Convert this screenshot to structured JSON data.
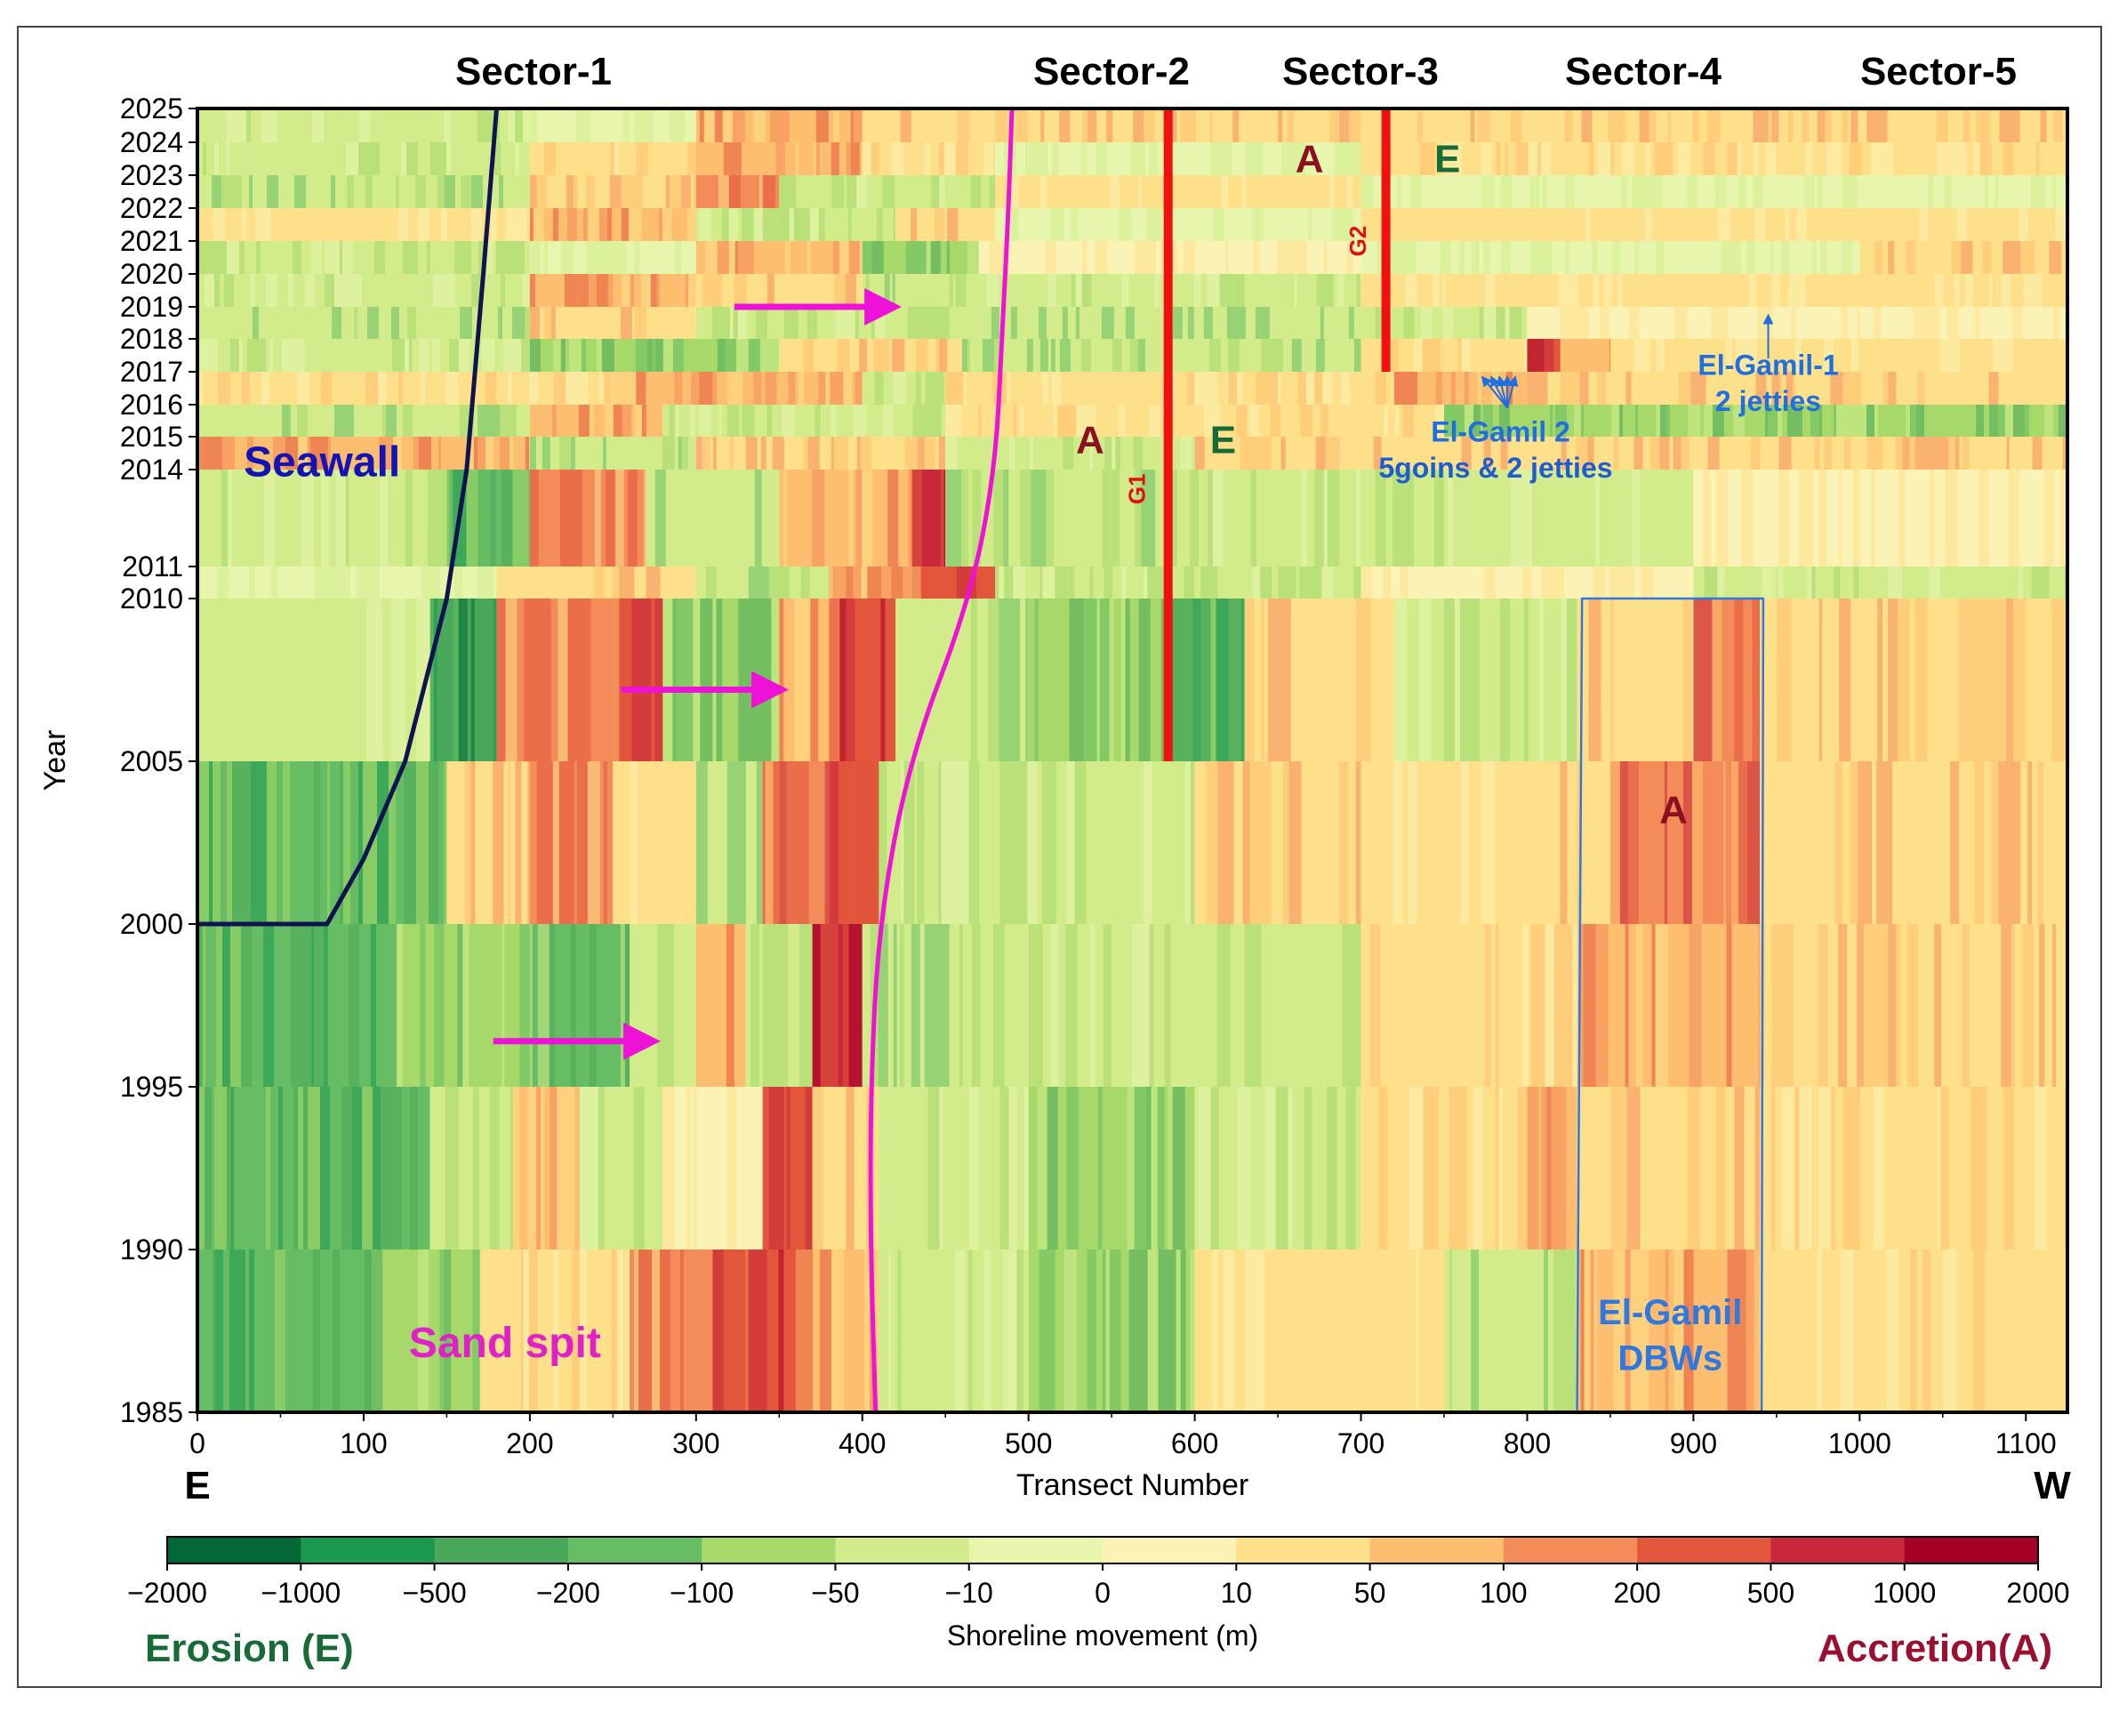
{
  "chart_data": {
    "type": "heatmap",
    "title": "",
    "xlabel": "Transect Number",
    "ylabel": "Year",
    "xlim": [
      0,
      1125
    ],
    "x_ticks": [
      0,
      100,
      200,
      300,
      400,
      500,
      600,
      700,
      800,
      900,
      1000,
      1100
    ],
    "y_ticks": [
      "1985",
      "1990",
      "1995",
      "2000",
      "2005",
      "2010",
      "2011",
      "2014",
      "2015",
      "2016",
      "2017",
      "2018",
      "2019",
      "2020",
      "2021",
      "2022",
      "2023",
      "2024",
      "2025"
    ],
    "direction_labels": {
      "left": "E",
      "right": "W"
    },
    "sectors": [
      {
        "label": "Sector-1",
        "center": 200
      },
      {
        "label": "Sector-2",
        "center": 550
      },
      {
        "label": "Sector-3",
        "center": 700
      },
      {
        "label": "Sector-4",
        "center": 870
      },
      {
        "label": "Sector-5",
        "center": 1050
      }
    ],
    "colorbar": {
      "label": "Shoreline movement (m)",
      "ticks": [
        "−2000",
        "−1000",
        "−500",
        "−200",
        "−100",
        "−50",
        "−10",
        "0",
        "10",
        "50",
        "100",
        "200",
        "500",
        "1000",
        "2000"
      ],
      "colors": [
        "#006837",
        "#1a9850",
        "#4aa85a",
        "#66bd63",
        "#a6d96a",
        "#d2ec8c",
        "#e8f5ad",
        "#fbf3b5",
        "#fee08b",
        "#fdbf6f",
        "#f48c5a",
        "#e2563c",
        "#c8283a",
        "#a50026"
      ],
      "left_label": "Erosion (E)",
      "right_label": "Accretion(A)"
    },
    "rows": [
      {
        "from": 1985,
        "to": 1990,
        "segments": [
          [
            0,
            105,
            -150
          ],
          [
            105,
            170,
            -60
          ],
          [
            170,
            260,
            15
          ],
          [
            260,
            310,
            120
          ],
          [
            310,
            360,
            320
          ],
          [
            360,
            410,
            60
          ],
          [
            410,
            500,
            -15
          ],
          [
            500,
            600,
            -60
          ],
          [
            600,
            750,
            12
          ],
          [
            750,
            830,
            -30
          ],
          [
            830,
            940,
            70
          ],
          [
            940,
            1125,
            20
          ]
        ]
      },
      {
        "from": 1990,
        "to": 1995,
        "segments": [
          [
            0,
            140,
            -160
          ],
          [
            140,
            190,
            -40
          ],
          [
            190,
            230,
            90
          ],
          [
            230,
            280,
            -25
          ],
          [
            280,
            340,
            8
          ],
          [
            340,
            370,
            350
          ],
          [
            370,
            410,
            30
          ],
          [
            410,
            500,
            -20
          ],
          [
            500,
            600,
            -80
          ],
          [
            600,
            700,
            -25
          ],
          [
            700,
            800,
            15
          ],
          [
            800,
            830,
            60
          ],
          [
            830,
            940,
            30
          ],
          [
            940,
            1125,
            20
          ]
        ]
      },
      {
        "from": 1995,
        "to": 2000,
        "segments": [
          [
            0,
            120,
            -160
          ],
          [
            120,
            200,
            -70
          ],
          [
            200,
            260,
            -120
          ],
          [
            260,
            300,
            -40
          ],
          [
            300,
            330,
            90
          ],
          [
            330,
            370,
            -25
          ],
          [
            370,
            400,
            600
          ],
          [
            400,
            500,
            -30
          ],
          [
            500,
            600,
            -20
          ],
          [
            600,
            700,
            -45
          ],
          [
            700,
            830,
            20
          ],
          [
            830,
            940,
            75
          ],
          [
            940,
            1125,
            25
          ]
        ]
      },
      {
        "from": 2000,
        "to": 2005,
        "segments": [
          [
            0,
            150,
            -170
          ],
          [
            150,
            200,
            30
          ],
          [
            200,
            250,
            100
          ],
          [
            250,
            300,
            20
          ],
          [
            300,
            340,
            -50
          ],
          [
            340,
            380,
            160
          ],
          [
            380,
            410,
            220
          ],
          [
            410,
            500,
            -25
          ],
          [
            500,
            600,
            -15
          ],
          [
            600,
            700,
            30
          ],
          [
            700,
            800,
            12
          ],
          [
            800,
            850,
            35
          ],
          [
            850,
            940,
            140
          ],
          [
            940,
            1125,
            35
          ]
        ]
      },
      {
        "from": 2005,
        "to": 2010,
        "segments": [
          [
            0,
            140,
            -12
          ],
          [
            140,
            180,
            -300
          ],
          [
            180,
            250,
            110
          ],
          [
            250,
            280,
            240
          ],
          [
            280,
            350,
            -90
          ],
          [
            350,
            380,
            80
          ],
          [
            380,
            420,
            450
          ],
          [
            420,
            500,
            -35
          ],
          [
            500,
            585,
            -60
          ],
          [
            585,
            630,
            -180
          ],
          [
            630,
            720,
            25
          ],
          [
            720,
            830,
            -15
          ],
          [
            830,
            900,
            40
          ],
          [
            900,
            940,
            150
          ],
          [
            940,
            1125,
            30
          ]
        ]
      },
      {
        "from": 2010,
        "to": 2011,
        "segments": [
          [
            0,
            180,
            -10
          ],
          [
            180,
            300,
            35
          ],
          [
            300,
            380,
            -40
          ],
          [
            380,
            430,
            70
          ],
          [
            430,
            480,
            220
          ],
          [
            480,
            700,
            -25
          ],
          [
            700,
            900,
            8
          ],
          [
            900,
            1125,
            -15
          ]
        ]
      },
      {
        "from": 2011,
        "to": 2014,
        "segments": [
          [
            0,
            150,
            -20
          ],
          [
            150,
            200,
            -180
          ],
          [
            200,
            270,
            100
          ],
          [
            270,
            350,
            -45
          ],
          [
            350,
            430,
            60
          ],
          [
            430,
            450,
            600
          ],
          [
            450,
            590,
            -40
          ],
          [
            590,
            750,
            -25
          ],
          [
            750,
            900,
            -12
          ],
          [
            900,
            1125,
            6
          ]
        ]
      },
      {
        "from": 2014,
        "to": 2015,
        "segments": [
          [
            0,
            200,
            60
          ],
          [
            200,
            300,
            -30
          ],
          [
            300,
            450,
            35
          ],
          [
            450,
            600,
            -15
          ],
          [
            600,
            1125,
            30
          ]
        ]
      },
      {
        "from": 2015,
        "to": 2016,
        "segments": [
          [
            0,
            200,
            -30
          ],
          [
            200,
            280,
            60
          ],
          [
            280,
            450,
            -20
          ],
          [
            450,
            750,
            20
          ],
          [
            750,
            1125,
            -60
          ]
        ]
      },
      {
        "from": 2016,
        "to": 2017,
        "segments": [
          [
            0,
            250,
            15
          ],
          [
            250,
            400,
            90
          ],
          [
            400,
            450,
            -25
          ],
          [
            450,
            720,
            20
          ],
          [
            720,
            800,
            60
          ],
          [
            800,
            1125,
            25
          ]
        ]
      },
      {
        "from": 2017,
        "to": 2018,
        "segments": [
          [
            0,
            200,
            -15
          ],
          [
            200,
            350,
            -60
          ],
          [
            350,
            460,
            35
          ],
          [
            460,
            700,
            -35
          ],
          [
            700,
            800,
            20
          ],
          [
            800,
            820,
            300
          ],
          [
            820,
            850,
            80
          ],
          [
            850,
            1125,
            12
          ]
        ]
      },
      {
        "from": 2018,
        "to": 2019,
        "segments": [
          [
            0,
            200,
            -40
          ],
          [
            200,
            300,
            25
          ],
          [
            300,
            460,
            -25
          ],
          [
            460,
            700,
            -50
          ],
          [
            700,
            800,
            -20
          ],
          [
            800,
            1125,
            8
          ]
        ]
      },
      {
        "from": 2019,
        "to": 2020,
        "segments": [
          [
            0,
            200,
            -20
          ],
          [
            200,
            300,
            80
          ],
          [
            300,
            400,
            30
          ],
          [
            400,
            470,
            -40
          ],
          [
            470,
            700,
            -15
          ],
          [
            700,
            1125,
            10
          ]
        ]
      },
      {
        "from": 2020,
        "to": 2021,
        "segments": [
          [
            0,
            200,
            -25
          ],
          [
            200,
            300,
            -10
          ],
          [
            300,
            400,
            70
          ],
          [
            400,
            470,
            -60
          ],
          [
            470,
            700,
            8
          ],
          [
            700,
            1000,
            -10
          ],
          [
            1000,
            1125,
            40
          ]
        ]
      },
      {
        "from": 2021,
        "to": 2022,
        "segments": [
          [
            0,
            200,
            10
          ],
          [
            200,
            300,
            50
          ],
          [
            300,
            420,
            -25
          ],
          [
            420,
            480,
            40
          ],
          [
            480,
            700,
            -10
          ],
          [
            700,
            1125,
            12
          ]
        ]
      },
      {
        "from": 2022,
        "to": 2023,
        "segments": [
          [
            0,
            200,
            -35
          ],
          [
            200,
            300,
            35
          ],
          [
            300,
            350,
            120
          ],
          [
            350,
            480,
            -20
          ],
          [
            480,
            700,
            10
          ],
          [
            700,
            1125,
            -8
          ]
        ]
      },
      {
        "from": 2023,
        "to": 2024,
        "segments": [
          [
            0,
            200,
            -15
          ],
          [
            200,
            300,
            15
          ],
          [
            300,
            400,
            70
          ],
          [
            400,
            480,
            20
          ],
          [
            480,
            700,
            -10
          ],
          [
            700,
            1125,
            20
          ]
        ]
      },
      {
        "from": 2024,
        "to": 2025,
        "segments": [
          [
            0,
            200,
            -20
          ],
          [
            200,
            300,
            -10
          ],
          [
            300,
            400,
            50
          ],
          [
            400,
            480,
            30
          ],
          [
            480,
            700,
            25
          ],
          [
            700,
            1125,
            35
          ]
        ]
      }
    ],
    "annotations": [
      {
        "text": "Seawall",
        "x": 75,
        "y": 2013.8,
        "color": "#1414b4"
      },
      {
        "text": "Sand spit",
        "x": 185,
        "y": 1986.7,
        "color": "#e020c8"
      },
      {
        "text": "A",
        "x": 537,
        "y": 2014.5,
        "color": "#8b1022"
      },
      {
        "text": "E",
        "x": 617,
        "y": 2014.5,
        "color": "#186a36"
      },
      {
        "text": "A",
        "x": 669,
        "y": 2023.1,
        "color": "#8b1022"
      },
      {
        "text": "E",
        "x": 752,
        "y": 2023.1,
        "color": "#186a36"
      },
      {
        "text": "A",
        "x": 888,
        "y": 2003.1,
        "color": "#8b1022"
      },
      {
        "text": "G1",
        "x": 570,
        "y": 2013.4,
        "color": "#e01010"
      },
      {
        "text": "G2",
        "x": 703,
        "y": 2021.0,
        "color": "#e01010"
      }
    ],
    "groins": [
      {
        "label": "G1",
        "x": 584,
        "from": 2005,
        "to": 2025
      },
      {
        "label": "G2",
        "x": 715,
        "from": 2017,
        "to": 2025
      }
    ],
    "structures": [
      {
        "line1": "El-Gamil 2",
        "line2": "5goins & 2 jetties",
        "target_x": 786,
        "target_y": 2017
      },
      {
        "line1": "El-Gamil-1",
        "line2": "2 jetties",
        "target_x": 945,
        "target_y": 2018.9
      }
    ],
    "dbw_box": {
      "line1": "El-Gamil",
      "line2": "DBWs",
      "x_left": 830,
      "x_right": 942,
      "from": 1985,
      "to": 2010
    },
    "seawall_line": [
      [
        0,
        2000
      ],
      [
        78,
        2000
      ],
      [
        100,
        2002
      ],
      [
        125,
        2005
      ],
      [
        150,
        2010
      ],
      [
        162,
        2014
      ],
      [
        172,
        2020
      ],
      [
        180,
        2025
      ]
    ],
    "sand_spit_line": [
      [
        408,
        1985
      ],
      [
        405,
        1990
      ],
      [
        405,
        1995
      ],
      [
        410,
        2000
      ],
      [
        428,
        2005
      ],
      [
        465,
        2010
      ],
      [
        480,
        2014
      ],
      [
        484,
        2018
      ],
      [
        488,
        2022
      ],
      [
        490,
        2025
      ]
    ],
    "arrows": [
      {
        "x0": 178,
        "x1": 275,
        "y": 1996.4
      },
      {
        "x0": 255,
        "x1": 352,
        "y": 2007.2
      },
      {
        "x0": 323,
        "x1": 420,
        "y": 2019.0
      }
    ]
  }
}
